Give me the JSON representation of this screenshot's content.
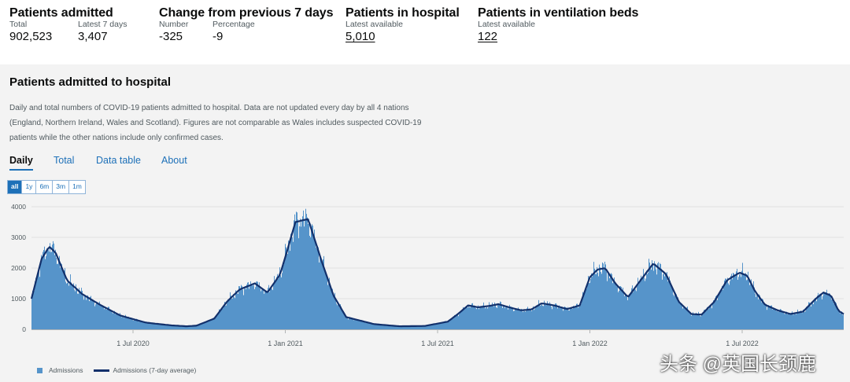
{
  "headline": {
    "admitted": {
      "title": "Patients admitted",
      "total_label": "Total",
      "total_value": "902,523",
      "latest_label": "Latest 7 days",
      "latest_value": "3,407"
    },
    "change": {
      "title": "Change from previous 7 days",
      "number_label": "Number",
      "number_value": "-325",
      "pct_label": "Percentage",
      "pct_value": "-9"
    },
    "hospital": {
      "title": "Patients in hospital",
      "label": "Latest available",
      "value": "5,010"
    },
    "ventilation": {
      "title": "Patients in ventilation beds",
      "label": "Latest available",
      "value": "122"
    }
  },
  "card": {
    "title": "Patients admitted to hospital",
    "description": "Daily and total numbers of COVID-19 patients admitted to hospital. Data are not updated every day by all 4 nations (England, Northern Ireland, Wales and Scotland). Figures are not comparable as Wales includes suspected COVID-19 patients while the other nations include only confirmed cases.",
    "tabs": [
      "Daily",
      "Total",
      "Data table",
      "About"
    ],
    "ranges": [
      "all",
      "1y",
      "6m",
      "3m",
      "1m"
    ]
  },
  "watermark": "头条 @英国长颈鹿",
  "colors": {
    "bar": "#5694ca",
    "line": "#12306b",
    "link": "#1d70b8"
  },
  "chart_data": {
    "type": "bar",
    "title": "Patients admitted to hospital",
    "ylim": [
      0,
      4000
    ],
    "yticks": [
      0,
      1000,
      2000,
      3000,
      4000
    ],
    "x_ticks": [
      "1 Jul 2020",
      "1 Jan 2021",
      "1 Jul 2021",
      "1 Jan 2022",
      "1 Jul 2022"
    ],
    "x_tick_months": [
      4,
      10,
      16,
      22,
      28
    ],
    "x_range_months": [
      0,
      32
    ],
    "legend": [
      "Admissions",
      "Admissions (7-day average)"
    ],
    "series": [
      {
        "name": "Admissions (7-day average)",
        "month_offsets": [
          0,
          0.4,
          0.7,
          0.95,
          1.4,
          2,
          2.7,
          3.5,
          4.5,
          5.5,
          6.1,
          6.5,
          7.2,
          7.7,
          8.2,
          8.8,
          9.3,
          9.8,
          10.05,
          10.4,
          10.9,
          11.4,
          11.9,
          12.4,
          13.5,
          14.5,
          15.5,
          16.4,
          16.8,
          17.2,
          17.6,
          18,
          18.4,
          18.9,
          19.3,
          19.7,
          20.1,
          20.6,
          21.1,
          21.6,
          22,
          22.3,
          22.6,
          23,
          23.5,
          24,
          24.5,
          25,
          25.5,
          26,
          26.4,
          26.9,
          27.4,
          27.9,
          28.2,
          28.5,
          28.9,
          29.4,
          29.9,
          30.4,
          30.9,
          31.2,
          31.5,
          31.8,
          32
        ],
        "values": [
          1000,
          2300,
          2700,
          2500,
          1600,
          1150,
          800,
          450,
          220,
          130,
          100,
          120,
          350,
          900,
          1300,
          1500,
          1200,
          1800,
          2500,
          3500,
          3600,
          2300,
          1100,
          400,
          170,
          100,
          110,
          250,
          500,
          780,
          720,
          760,
          820,
          700,
          620,
          650,
          850,
          780,
          660,
          780,
          1700,
          1950,
          2000,
          1500,
          1050,
          1600,
          2150,
          1800,
          900,
          500,
          480,
          900,
          1600,
          1850,
          1750,
          1250,
          800,
          620,
          500,
          580,
          1000,
          1200,
          1100,
          600,
          500
        ]
      }
    ]
  }
}
